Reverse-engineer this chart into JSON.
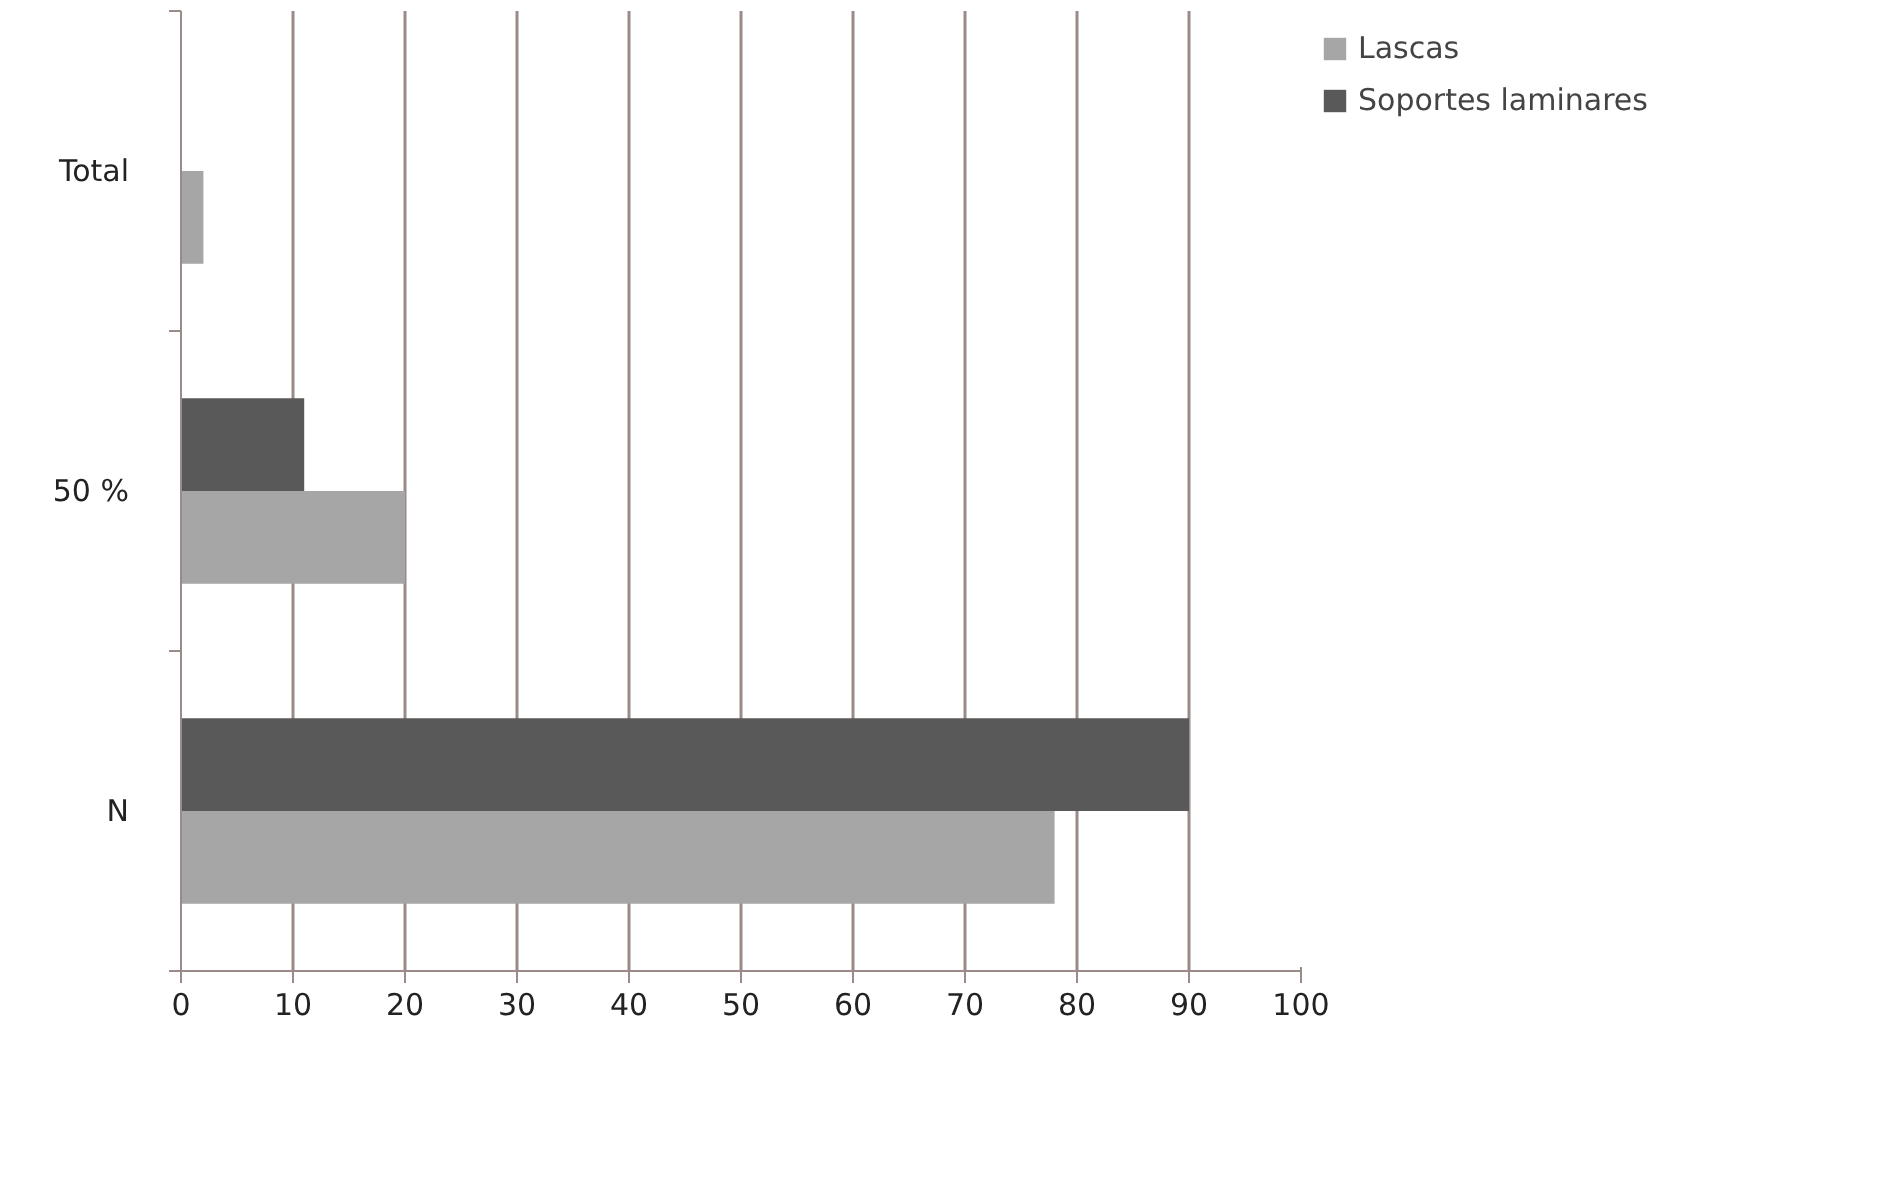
{
  "chart_data": {
    "type": "bar",
    "orientation": "horizontal",
    "categories": [
      "Total",
      "50 %",
      "N"
    ],
    "series": [
      {
        "name": "Lascas",
        "color": "#a6a6a6",
        "values": [
          2,
          20,
          78
        ]
      },
      {
        "name": "Soportes laminares",
        "color": "#595959",
        "values": [
          0,
          11,
          90
        ]
      }
    ],
    "xlim": [
      0,
      100
    ],
    "xticks": [
      0,
      10,
      20,
      30,
      40,
      50,
      60,
      70,
      80,
      90,
      100
    ],
    "grid": "x",
    "legend": "top right"
  }
}
